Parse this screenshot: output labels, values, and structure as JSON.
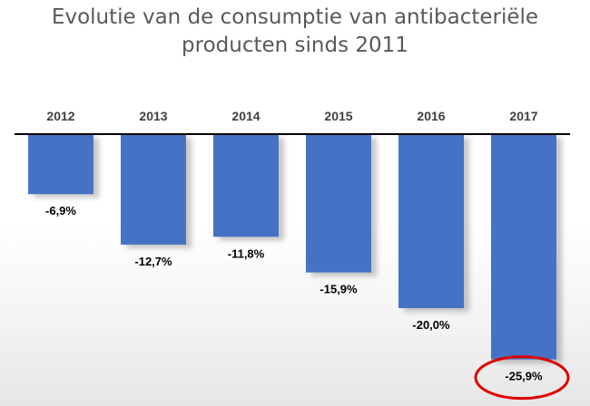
{
  "chart_data": {
    "type": "bar",
    "title_lines": [
      "Evolutie van de consumptie van antibacteriële",
      "producten sinds 2011"
    ],
    "categories": [
      "2012",
      "2013",
      "2014",
      "2015",
      "2016",
      "2017"
    ],
    "values": [
      -6.9,
      -12.7,
      -11.8,
      -15.9,
      -20.0,
      -25.9
    ],
    "data_labels": [
      "-6,9%",
      "-12,7%",
      "-11,8%",
      "-15,9%",
      "-20,0%",
      "-25,9%"
    ],
    "xlabel": "",
    "ylabel": "",
    "ylim": [
      -26,
      0
    ],
    "grid": false,
    "legend": "none",
    "category_axis_position": "top",
    "bar_color": "#4472c4",
    "highlight": {
      "category": "2017",
      "shape": "ellipse",
      "color": "#e00000"
    }
  }
}
